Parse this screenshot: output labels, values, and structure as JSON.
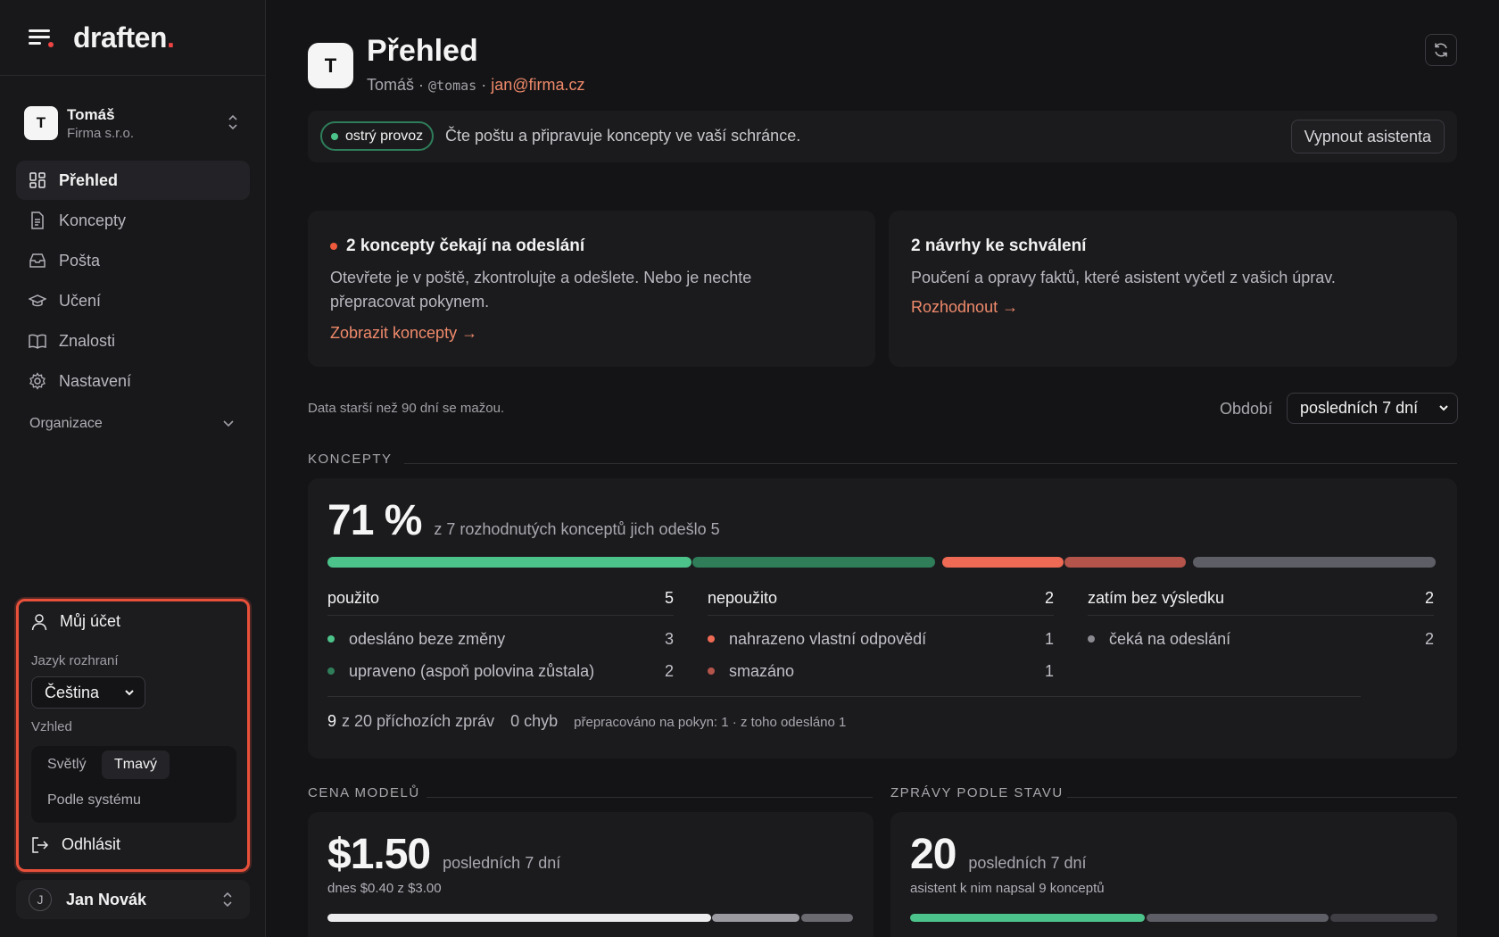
{
  "sidebar": {
    "brand": "draften",
    "brand_dot": ".",
    "org": {
      "initial": "T",
      "name": "Tomáš",
      "company": "Firma s.r.o."
    },
    "nav": [
      {
        "label": "Přehled",
        "icon": "grid-icon",
        "active": true
      },
      {
        "label": "Koncepty",
        "icon": "document-icon"
      },
      {
        "label": "Pošta",
        "icon": "inbox-icon"
      },
      {
        "label": "Učení",
        "icon": "graduation-cap-icon"
      },
      {
        "label": "Znalosti",
        "icon": "book-icon"
      },
      {
        "label": "Nastavení",
        "icon": "gear-icon"
      }
    ],
    "org_group": "Organizace",
    "account": {
      "title": "Můj účet",
      "lang_label": "Jazyk rozhraní",
      "lang_value": "Čeština",
      "theme_label": "Vzhled",
      "theme_light": "Světlý",
      "theme_dark": "Tmavý",
      "theme_system": "Podle systému",
      "logout": "Odhlásit"
    },
    "user": {
      "initial": "J",
      "name": "Jan Novák"
    }
  },
  "header": {
    "initial": "T",
    "title": "Přehled",
    "name": "Tomáš ·",
    "handle": "@tomas",
    "sep": "·",
    "email": "jan@firma.cz"
  },
  "status": {
    "pill": "ostrý provoz",
    "text": "Čte poštu a připravuje koncepty ve vaší schránce.",
    "button": "Vypnout asistenta"
  },
  "cards": [
    {
      "title": "2 koncepty čekají na odeslání",
      "body1": "Otevřete je v poště, zkontrolujte a odešlete. Nebo je nechte",
      "body2": "přepracovat pokynem.",
      "link": "Zobrazit koncepty →"
    },
    {
      "title": "2 návrhy ke schválení",
      "body1": "Poučení a opravy faktů, které asistent vyčetl z vašich úprav.",
      "link": "Rozhodnout →"
    }
  ],
  "filter": {
    "note": "Data starší než 90 dní se mažou.",
    "period_label": "Období",
    "period_value": "posledních 7 dní"
  },
  "concepts": {
    "section": "KONCEPTY",
    "percent": "71 %",
    "caption": "z 7 rozhodnutých konceptů jich odešlo 5",
    "groups": [
      {
        "label": "použito",
        "count": "5",
        "rows": [
          {
            "label": "odesláno beze změny",
            "count": "3",
            "color": "#4cc38a"
          },
          {
            "label": "upraveno (aspoň polovina zůstala)",
            "count": "2",
            "color": "#2f7d59"
          }
        ]
      },
      {
        "label": "nepoužito",
        "count": "2",
        "rows": [
          {
            "label": "nahrazeno vlastní odpovědí",
            "count": "1",
            "color": "#ef6a54"
          },
          {
            "label": "smazáno",
            "count": "1",
            "color": "#b4544a"
          }
        ]
      },
      {
        "label": "zatím bez výsledku",
        "count": "2",
        "rows": [
          {
            "label": "čeká na odeslání",
            "count": "2",
            "color": "#8a8a90"
          }
        ]
      }
    ],
    "footer_in_num": "9",
    "footer_in_text": "z 20 příchozích zpráv",
    "footer_err": "0 chyb",
    "footer_note": "přepracováno na pokyn: 1 · z toho odesláno 1"
  },
  "cost": {
    "section": "CENA MODELŮ",
    "value": "$1.50",
    "caption": "posledních 7 dní",
    "sub": "dnes $0.40 z $3.00"
  },
  "messages": {
    "section": "ZPRÁVY PODLE STAVU",
    "value": "20",
    "caption": "posledních 7 dní",
    "sub": "asistent k nim napsal 9 konceptů"
  }
}
